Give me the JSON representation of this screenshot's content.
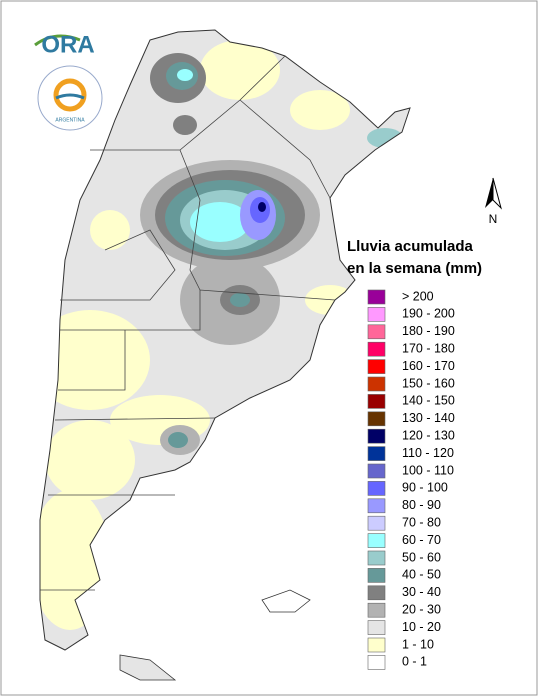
{
  "logo": {
    "text": "ORA",
    "seal": "ARGENTINA"
  },
  "compass": "N",
  "legend": {
    "title": [
      "Lluvia acumulada",
      "en la semana (mm)"
    ],
    "items": [
      {
        "label": "> 200",
        "color": "#990099"
      },
      {
        "label": "190 - 200",
        "color": "#ff99ff"
      },
      {
        "label": "180 - 190",
        "color": "#ff6699"
      },
      {
        "label": "170 - 180",
        "color": "#ff0066"
      },
      {
        "label": "160 - 170",
        "color": "#ff0000"
      },
      {
        "label": "150 - 160",
        "color": "#cc3300"
      },
      {
        "label": "140 - 150",
        "color": "#990000"
      },
      {
        "label": "130 - 140",
        "color": "#663300"
      },
      {
        "label": "120 - 130",
        "color": "#000066"
      },
      {
        "label": "110 - 120",
        "color": "#003399"
      },
      {
        "label": "100 - 110",
        "color": "#6666cc"
      },
      {
        "label": "90 - 100",
        "color": "#6666ff"
      },
      {
        "label": "80 - 90",
        "color": "#9999ff"
      },
      {
        "label": "70 - 80",
        "color": "#ccccff"
      },
      {
        "label": "60 - 70",
        "color": "#99ffff"
      },
      {
        "label": "50 - 60",
        "color": "#99cccc"
      },
      {
        "label": "40 - 50",
        "color": "#669999"
      },
      {
        "label": "30 - 40",
        "color": "#808080"
      },
      {
        "label": "20 - 30",
        "color": "#b2b2b2"
      },
      {
        "label": "10 - 20",
        "color": "#e5e5e5"
      },
      {
        "label": "1 - 10",
        "color": "#ffffcc"
      },
      {
        "label": "0 - 1",
        "color": "#ffffff"
      }
    ]
  }
}
